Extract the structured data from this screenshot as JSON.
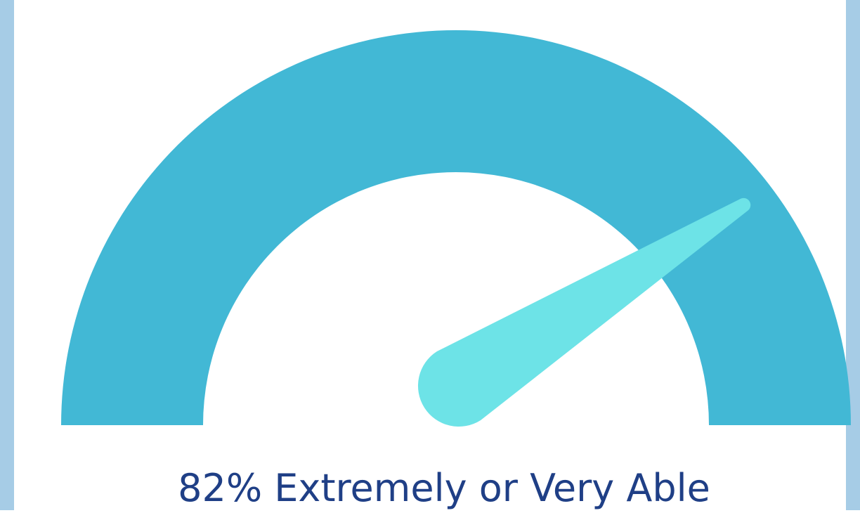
{
  "colors": {
    "arc": "#42b8d5",
    "needle": "#6de3e7",
    "text": "#1f3f86",
    "frame": "#a6cce6"
  },
  "chart_data": {
    "type": "gauge",
    "value_percent": 82,
    "range": [
      0,
      100
    ],
    "caption": "82% Extremely or Very Able"
  }
}
